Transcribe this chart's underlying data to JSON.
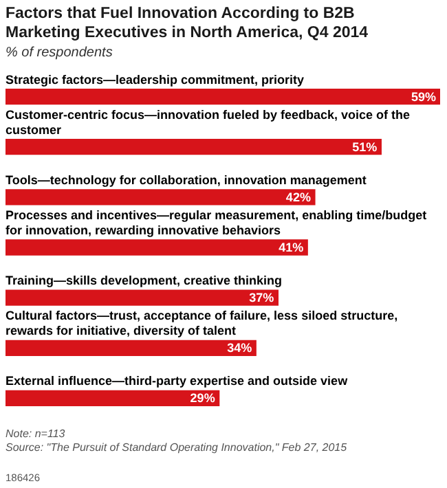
{
  "chart_data": {
    "type": "bar",
    "orientation": "horizontal",
    "title": "Factors that Fuel Innovation According to B2B Marketing Executives in North America, Q4 2014",
    "subtitle": "% of respondents",
    "categories": [
      "Strategic factors—leadership commitment, priority",
      "Customer-centric focus—innovation fueled by feedback, voice of the customer",
      "Tools—technology for collaboration, innovation management",
      "Processes and incentives—regular measurement, enabling time/budget for innovation, rewarding innovative behaviors",
      "Training—skills development, creative thinking",
      "Cultural factors—trust, acceptance of failure, less siloed structure, rewards for initiative, diversity of talent",
      "External influence—third-party expertise and outside view"
    ],
    "values": [
      59,
      51,
      42,
      41,
      37,
      34,
      29
    ],
    "value_labels": [
      "59%",
      "51%",
      "42%",
      "41%",
      "37%",
      "34%",
      "29%"
    ],
    "color": "#d7141a",
    "tick_labels": false,
    "annotations": [
      "Note: n=113",
      "Source: \"The Pursuit of Standard Operating Innovation,\" Feb 27, 2015",
      "186426"
    ]
  }
}
